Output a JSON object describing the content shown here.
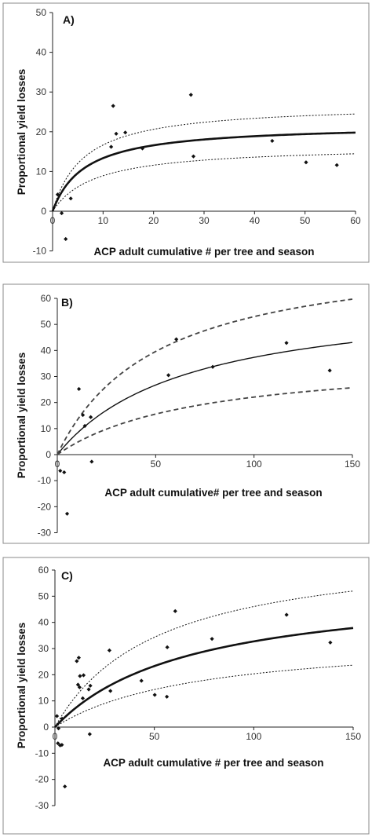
{
  "chart_data": [
    {
      "type": "scatter",
      "panel_label": "A)",
      "xlabel": "ACP adult cumulative # per tree and season",
      "ylabel": "Proportional yield losses",
      "xlim": [
        0,
        60
      ],
      "ylim": [
        -10,
        50
      ],
      "xticks": [
        0,
        10,
        20,
        30,
        40,
        50,
        60
      ],
      "yticks": [
        -10,
        0,
        10,
        20,
        30,
        40,
        50
      ],
      "grid": false,
      "points": [
        [
          1.0,
          4.2
        ],
        [
          1.8,
          -0.5
        ],
        [
          2.6,
          -7.0
        ],
        [
          3.6,
          3.2
        ],
        [
          11.6,
          16.2
        ],
        [
          12.0,
          26.5
        ],
        [
          12.6,
          19.5
        ],
        [
          14.4,
          19.8
        ],
        [
          17.8,
          15.8
        ],
        [
          27.4,
          29.3
        ],
        [
          27.9,
          13.8
        ],
        [
          43.5,
          17.7
        ],
        [
          50.2,
          12.3
        ],
        [
          56.3,
          11.6
        ]
      ],
      "curves": [
        {
          "name": "",
          "style": "solid-thick",
          "a": 21.9,
          "b": 6.4
        },
        {
          "name": "",
          "style": "dotted",
          "a": 27.0,
          "b": 6.2
        },
        {
          "name": "",
          "style": "dotted",
          "a": 16.5,
          "b": 8.5
        }
      ]
    },
    {
      "type": "scatter",
      "panel_label": "B)",
      "xlabel": "ACP adult cumulative# per tree and season",
      "ylabel": "Proportional yield losses",
      "xlim": [
        0,
        150
      ],
      "ylim": [
        -30,
        60
      ],
      "xticks": [
        0,
        50,
        100,
        150
      ],
      "yticks": [
        -30,
        -20,
        -10,
        0,
        10,
        20,
        30,
        40,
        50,
        60
      ],
      "grid": false,
      "points": [
        [
          1.5,
          -6.2
        ],
        [
          3.5,
          -6.8
        ],
        [
          5.0,
          -22.7
        ],
        [
          11.0,
          25.2
        ],
        [
          13.0,
          15.2
        ],
        [
          14.0,
          11.0
        ],
        [
          17.0,
          14.4
        ],
        [
          17.5,
          -2.7
        ],
        [
          56.5,
          30.5
        ],
        [
          60.5,
          44.3
        ],
        [
          79.0,
          33.7
        ],
        [
          116.5,
          42.9
        ],
        [
          138.5,
          32.3
        ]
      ],
      "curves": [
        {
          "name": "",
          "style": "solid",
          "a": 62.0,
          "b": 66.0
        },
        {
          "name": "",
          "style": "dashed",
          "a": 80.0,
          "b": 51.0
        },
        {
          "name": "",
          "style": "dashed",
          "a": 38.0,
          "b": 72.0
        }
      ]
    },
    {
      "type": "scatter",
      "panel_label": "C)",
      "xlabel": "ACP adult cumulative # per tree and season",
      "ylabel": "Proportional yield losses",
      "xlim": [
        0,
        150
      ],
      "ylim": [
        -30,
        60
      ],
      "xticks": [
        0,
        50,
        100,
        150
      ],
      "yticks": [
        -30,
        -20,
        -10,
        0,
        10,
        20,
        30,
        40,
        50,
        60
      ],
      "grid": false,
      "points": [
        [
          1.0,
          4.2
        ],
        [
          1.8,
          -0.5
        ],
        [
          2.6,
          -7.0
        ],
        [
          3.6,
          3.2
        ],
        [
          1.5,
          -6.2
        ],
        [
          3.5,
          -6.8
        ],
        [
          5.0,
          -22.7
        ],
        [
          11.0,
          25.2
        ],
        [
          12.0,
          26.5
        ],
        [
          11.6,
          16.2
        ],
        [
          12.4,
          15.2
        ],
        [
          12.6,
          19.5
        ],
        [
          14.4,
          19.8
        ],
        [
          14.0,
          11.0
        ],
        [
          17.0,
          14.4
        ],
        [
          17.8,
          15.8
        ],
        [
          17.5,
          -2.7
        ],
        [
          27.4,
          29.3
        ],
        [
          27.9,
          13.8
        ],
        [
          43.5,
          17.7
        ],
        [
          50.2,
          12.3
        ],
        [
          56.3,
          11.6
        ],
        [
          56.5,
          30.5
        ],
        [
          60.5,
          44.3
        ],
        [
          79.0,
          33.7
        ],
        [
          116.5,
          42.9
        ],
        [
          138.5,
          32.3
        ]
      ],
      "curves": [
        {
          "name": "",
          "style": "solid-thick",
          "a": 55.0,
          "b": 68.0
        },
        {
          "name": "",
          "style": "dotted",
          "a": 70.0,
          "b": 52.0
        },
        {
          "name": "",
          "style": "dotted",
          "a": 35.0,
          "b": 72.0
        }
      ]
    }
  ]
}
